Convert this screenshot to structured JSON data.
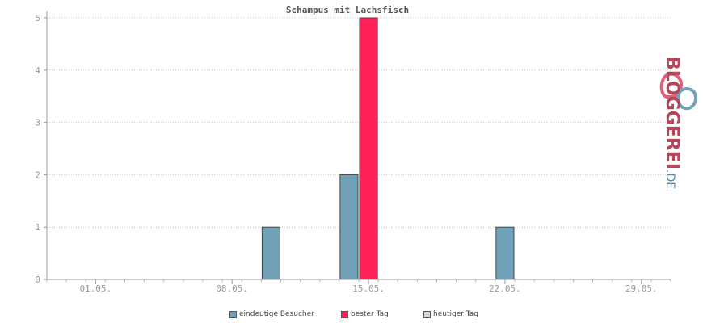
{
  "chart_data": {
    "type": "bar",
    "title": "Schampus mit Lachsfisch",
    "xlabel": "",
    "ylabel": "",
    "ylim": [
      0,
      5
    ],
    "yticks": [
      "0",
      "1",
      "2",
      "3",
      "4",
      "5"
    ],
    "x_range_days": [
      "2020-04-29",
      "2020-05-31"
    ],
    "xticks": [
      {
        "label": "01.05.",
        "date": "2020-05-01"
      },
      {
        "label": "08.05.",
        "date": "2020-05-08"
      },
      {
        "label": "15.05.",
        "date": "2020-05-15"
      },
      {
        "label": "22.05.",
        "date": "2020-05-22"
      },
      {
        "label": "29.05.",
        "date": "2020-05-29"
      }
    ],
    "grid": true,
    "legend_position": "bottom",
    "series": [
      {
        "name": "eindeutige Besucher",
        "color": "#6fa2b8",
        "points": [
          {
            "date": "2020-05-10",
            "value": 1
          },
          {
            "date": "2020-05-14",
            "value": 2
          },
          {
            "date": "2020-05-22",
            "value": 1
          }
        ]
      },
      {
        "name": "bester Tag",
        "color": "#ff2157",
        "points": [
          {
            "date": "2020-05-15",
            "value": 5
          }
        ]
      },
      {
        "name": "heutiger Tag",
        "color": "#d6d6d6",
        "points": []
      }
    ]
  },
  "legend": {
    "items": [
      {
        "label": "eindeutige Besucher",
        "color": "#6fa2b8"
      },
      {
        "label": "bester Tag",
        "color": "#ff2157"
      },
      {
        "label": "heutiger Tag",
        "color": "#d6d6d6"
      }
    ]
  },
  "logo": {
    "main": "BLOGGEREI",
    "tld": ".DE"
  }
}
